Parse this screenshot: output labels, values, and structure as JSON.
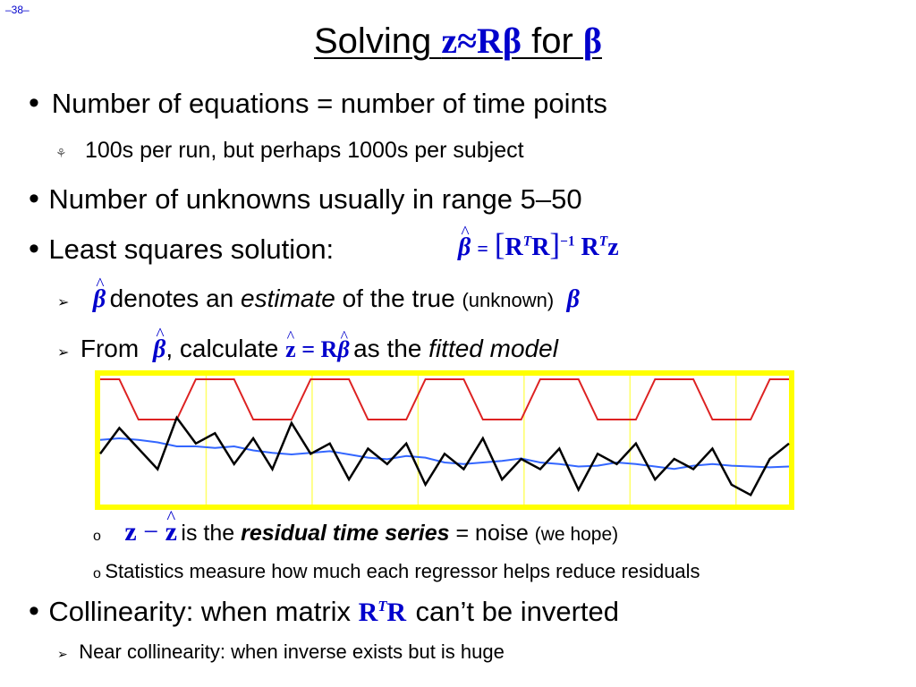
{
  "slide_number": "–38–",
  "title": {
    "prefix": "Solving ",
    "eq_z": "z",
    "eq_approx": "≈",
    "eq_R": "R",
    "eq_beta": "β",
    "mid": " for ",
    "beta": "β"
  },
  "items": {
    "eq_count": "Number of equations = number of time points",
    "eq_count_sub": "100s per run, but perhaps 1000s per subject",
    "unknowns": "Number of unknowns usually in range 5–50",
    "least_squares": "Least squares solution:",
    "denotes_text": " denotes an ",
    "denotes_estimate": "estimate",
    "denotes_rest": " of the true ",
    "denotes_unknown": "(unknown)",
    "from_text": "From ",
    "calculate_text": ", calculate ",
    "as_the_text": " as the ",
    "fitted_model": "fitted model",
    "is_the_text": " is the ",
    "residual": "residual time series",
    "equals_noise": " = noise ",
    "we_hope": "(we hope)",
    "statistics": "Statistics measure how much each regressor helps reduce residuals",
    "collinearity_prefix": "Collinearity: when matrix ",
    "collinearity_suffix": "can’t be inverted",
    "near_collinearity": "Near collinearity: when inverse exists but is huge"
  },
  "math": {
    "beta": "β",
    "z": "z",
    "R": "R",
    "T": "T",
    "equals": "=",
    "minus": "−",
    "inv": "−1"
  },
  "markers": {
    "bullet": "•",
    "arrow": "➢",
    "circle": "o"
  },
  "colors": {
    "math": "#0000cc",
    "chart_bg": "#ffff00",
    "chart_inner": "#ffffff",
    "chart_grid": "#ffff66",
    "red_series": "#dd2222",
    "blue_series": "#3366ff",
    "black_series": "#000000"
  },
  "chart_data": {
    "type": "line",
    "grid": true,
    "series": [
      {
        "color": "red",
        "values": [
          1.0,
          1.0,
          0.1,
          0.1,
          0.1,
          1.0,
          1.0,
          1.0,
          0.1,
          0.1,
          0.1,
          1.0,
          1.0,
          1.0,
          0.1,
          0.1,
          0.1,
          1.0,
          1.0,
          1.0,
          0.1,
          0.1,
          0.1,
          1.0,
          1.0,
          1.0,
          0.1,
          0.1,
          0.1,
          1.0,
          1.0,
          1.0,
          0.1,
          0.1,
          0.1,
          1.0,
          1.0
        ]
      },
      {
        "color": "blue",
        "values": [
          0.58,
          0.6,
          0.58,
          0.55,
          0.5,
          0.5,
          0.48,
          0.5,
          0.45,
          0.42,
          0.4,
          0.42,
          0.44,
          0.4,
          0.36,
          0.34,
          0.38,
          0.36,
          0.3,
          0.28,
          0.3,
          0.32,
          0.35,
          0.3,
          0.28,
          0.25,
          0.26,
          0.3,
          0.28,
          0.25,
          0.22,
          0.26,
          0.28,
          0.26,
          0.25,
          0.24,
          0.25
        ]
      },
      {
        "color": "black",
        "values": [
          0.45,
          0.7,
          0.5,
          0.3,
          0.8,
          0.55,
          0.65,
          0.35,
          0.6,
          0.3,
          0.75,
          0.45,
          0.55,
          0.2,
          0.5,
          0.35,
          0.55,
          0.15,
          0.45,
          0.3,
          0.6,
          0.2,
          0.4,
          0.3,
          0.5,
          0.1,
          0.45,
          0.35,
          0.55,
          0.2,
          0.4,
          0.3,
          0.5,
          0.15,
          0.05,
          0.4,
          0.55
        ]
      }
    ]
  }
}
